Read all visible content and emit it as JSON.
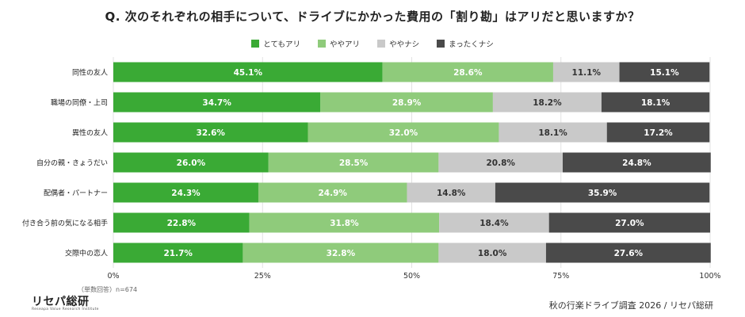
{
  "title": "Q. 次のそれぞれの相手について、ドライブにかかった費用の「割り勘」はアリだと思いますか？",
  "legend": {
    "items": [
      {
        "label": "とてもアリ",
        "color": "#3aaa35"
      },
      {
        "label": "ややアリ",
        "color": "#8fcb7b"
      },
      {
        "label": "ややナシ",
        "color": "#c9c9c9"
      },
      {
        "label": "まったくナシ",
        "color": "#4a4a4a"
      }
    ]
  },
  "chart_data": {
    "type": "bar",
    "orientation": "horizontal",
    "stacked": true,
    "percent": true,
    "categories": [
      "同性の友人",
      "職場の同僚・上司",
      "異性の友人",
      "自分の親・きょうだい",
      "配偶者・パートナー",
      "付き合う前の気になる相手",
      "交際中の恋人"
    ],
    "series": [
      {
        "name": "とてもアリ",
        "values": [
          45.1,
          34.7,
          32.6,
          26.0,
          24.3,
          22.8,
          21.7
        ]
      },
      {
        "name": "ややアリ",
        "values": [
          28.6,
          28.9,
          32.0,
          28.5,
          24.9,
          31.8,
          32.8
        ]
      },
      {
        "name": "ややナシ",
        "values": [
          11.1,
          18.2,
          18.1,
          20.8,
          14.8,
          18.4,
          18.0
        ]
      },
      {
        "name": "まったくナシ",
        "values": [
          15.1,
          18.1,
          17.2,
          24.8,
          35.9,
          27.0,
          27.6
        ]
      }
    ],
    "xlim": [
      0,
      100
    ],
    "xticks": [
      "0%",
      "25%",
      "50%",
      "75%",
      "100%"
    ],
    "xtick_values": [
      0,
      25,
      50,
      75,
      100
    ],
    "grid": true,
    "legend_position": "top-center",
    "label_colors": [
      "#ffffff",
      "#ffffff",
      "#333333",
      "#ffffff"
    ]
  },
  "footer": {
    "sample_note": "（単数回答）n=674",
    "source": "秋の行楽ドライブ調査 2026 / リセパ総研",
    "logo": "リセパ総研",
    "logo_sub": "Reseapa Value Research Institute"
  }
}
